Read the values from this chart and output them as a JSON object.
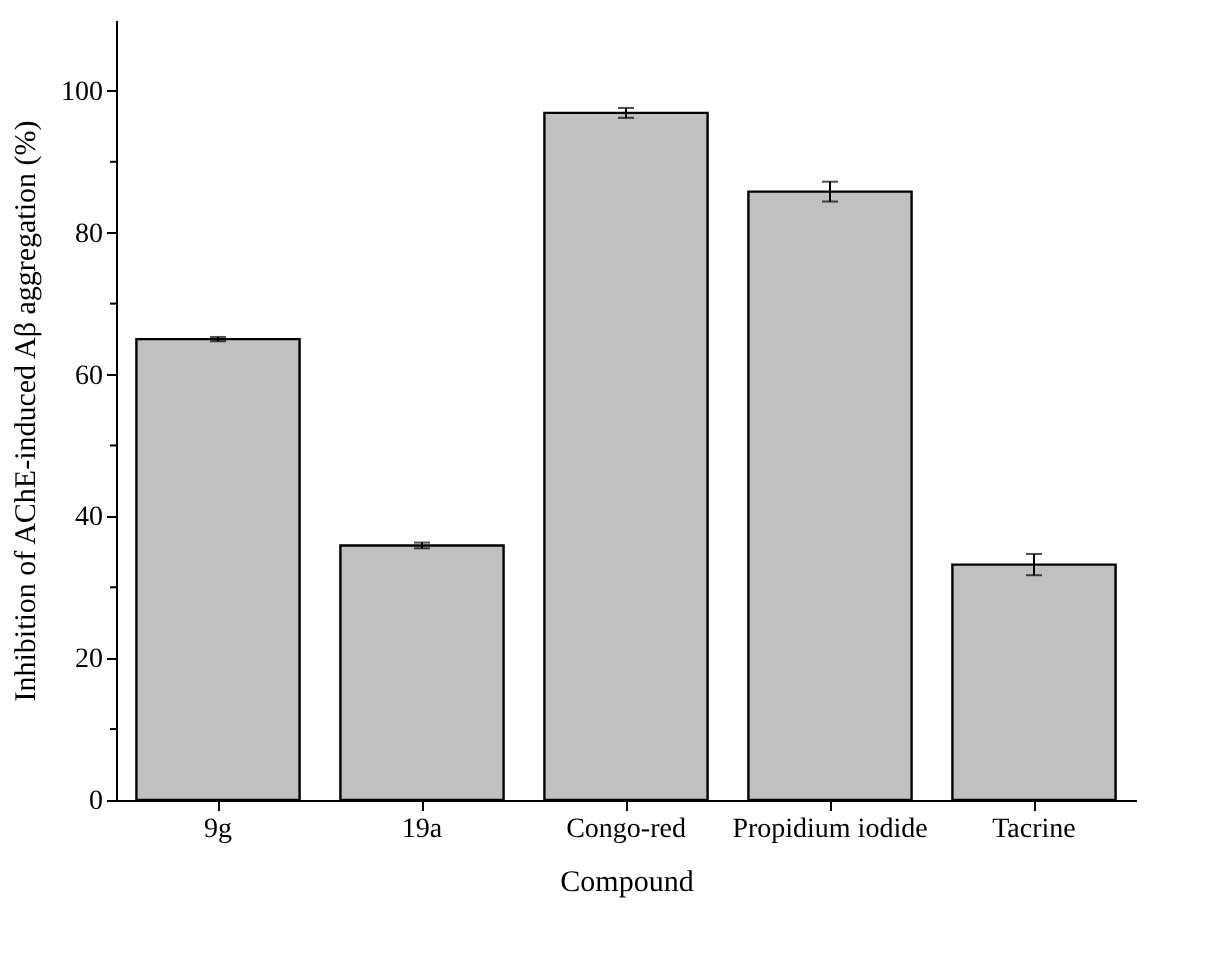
{
  "chart_data": {
    "type": "bar",
    "xlabel": "Compound",
    "ylabel": "Inhibition of AChE-induced Aβ aggregation (%)",
    "categories": [
      "9g",
      "19a",
      "Congo-red",
      "Propidium iodide",
      "Tacrine"
    ],
    "values": [
      65.0,
      35.9,
      96.9,
      85.8,
      33.2
    ],
    "errors": [
      0.3,
      0.4,
      0.7,
      1.4,
      1.5
    ],
    "color": "#c0c0c0",
    "ylim": [
      0,
      110
    ],
    "yticks": [
      0,
      {
        "value": 10,
        "label": null
      },
      20,
      {
        "value": 30,
        "label": null
      },
      40,
      {
        "value": 50,
        "label": null
      },
      60,
      {
        "value": 70,
        "label": null
      },
      80,
      {
        "value": 90,
        "label": null
      },
      100
    ],
    "grid": false
  }
}
